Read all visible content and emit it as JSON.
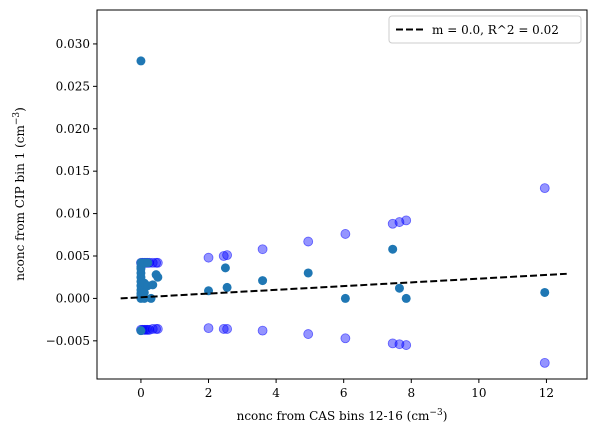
{
  "chart_data": {
    "type": "scatter",
    "title": "",
    "xlabel": "nconc from CAS bins 12-16 (cm",
    "xlabel_sup": "−3",
    "xlabel_close": ")",
    "ylabel": "nconc from CIP bin 1 (cm",
    "ylabel_sup": "−3",
    "ylabel_close": ")",
    "xlim": [
      -1.3,
      13.2
    ],
    "ylim": [
      -0.0095,
      0.034
    ],
    "xticks": [
      0,
      2,
      4,
      6,
      8,
      10,
      12
    ],
    "xtick_labels": [
      "0",
      "2",
      "4",
      "6",
      "8",
      "10",
      "12"
    ],
    "yticks": [
      -0.005,
      0.0,
      0.005,
      0.01,
      0.015,
      0.02,
      0.025,
      0.03
    ],
    "ytick_labels": [
      "−0.005",
      "0.000",
      "0.005",
      "0.010",
      "0.015",
      "0.020",
      "0.025",
      "0.030"
    ],
    "grid": false,
    "legend": {
      "location": "top-right",
      "entries": [
        "m = 0.0, R^2 = 0.02"
      ]
    },
    "colors": {
      "data": "#1f77b4",
      "bounds": "#0000ff",
      "fit": "#000000"
    },
    "series": [
      {
        "role": "data",
        "points": [
          [
            0.0,
            0.028
          ],
          [
            0.0,
            0.0042
          ],
          [
            0.0,
            0.0037
          ],
          [
            0.0,
            0.0035
          ],
          [
            0.0,
            0.003
          ],
          [
            0.0,
            0.0025
          ],
          [
            0.0,
            0.002
          ],
          [
            0.0,
            0.0015
          ],
          [
            0.0,
            0.001
          ],
          [
            0.0,
            0.0006
          ],
          [
            0.0,
            0.0003
          ],
          [
            0.0,
            0.0
          ],
          [
            0.0,
            -0.0038
          ],
          [
            0.1,
            0.0042
          ],
          [
            0.1,
            0.0018
          ],
          [
            0.1,
            0.0007
          ],
          [
            0.1,
            0.0
          ],
          [
            0.2,
            0.0042
          ],
          [
            0.2,
            0.0015
          ],
          [
            0.3,
            0.0
          ],
          [
            0.35,
            0.0016
          ],
          [
            0.45,
            0.0028
          ],
          [
            0.5,
            0.0025
          ],
          [
            2.0,
            0.0009
          ],
          [
            2.5,
            0.0036
          ],
          [
            2.55,
            0.0013
          ],
          [
            3.6,
            0.0021
          ],
          [
            4.95,
            0.003
          ],
          [
            6.05,
            0.0
          ],
          [
            7.45,
            0.0058
          ],
          [
            7.65,
            0.0012
          ],
          [
            7.85,
            0.0
          ],
          [
            11.95,
            0.0007
          ]
        ]
      },
      {
        "role": "bounds",
        "points": [
          [
            0.0,
            0.0042
          ],
          [
            0.05,
            0.0042
          ],
          [
            0.1,
            0.0042
          ],
          [
            0.15,
            0.0042
          ],
          [
            0.2,
            0.0042
          ],
          [
            0.25,
            0.0042
          ],
          [
            0.35,
            0.0042
          ],
          [
            0.45,
            0.0042
          ],
          [
            0.5,
            0.0042
          ],
          [
            0.0,
            -0.0037
          ],
          [
            0.05,
            -0.0037
          ],
          [
            0.1,
            -0.0037
          ],
          [
            0.15,
            -0.0037
          ],
          [
            0.2,
            -0.0037
          ],
          [
            0.25,
            -0.0037
          ],
          [
            0.35,
            -0.0036
          ],
          [
            0.45,
            -0.0036
          ],
          [
            0.5,
            -0.0036
          ],
          [
            2.0,
            0.0048
          ],
          [
            2.45,
            0.005
          ],
          [
            2.55,
            0.0051
          ],
          [
            3.6,
            0.0058
          ],
          [
            4.95,
            0.0067
          ],
          [
            6.05,
            0.0076
          ],
          [
            7.45,
            0.0088
          ],
          [
            7.65,
            0.009
          ],
          [
            7.85,
            0.0092
          ],
          [
            11.95,
            0.013
          ],
          [
            2.0,
            -0.0035
          ],
          [
            2.45,
            -0.0036
          ],
          [
            2.55,
            -0.0036
          ],
          [
            3.6,
            -0.0038
          ],
          [
            4.95,
            -0.0042
          ],
          [
            6.05,
            -0.0047
          ],
          [
            7.45,
            -0.0053
          ],
          [
            7.65,
            -0.0054
          ],
          [
            7.85,
            -0.0055
          ],
          [
            11.95,
            -0.0076
          ]
        ]
      }
    ],
    "fit_line": {
      "x": [
        -0.6,
        12.6
      ],
      "y": [
        0.0,
        0.0029
      ]
    }
  }
}
